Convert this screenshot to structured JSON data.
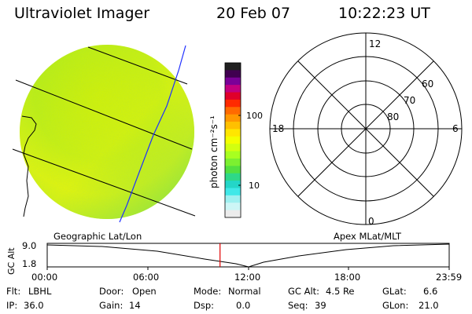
{
  "header": {
    "title": "Ultraviolet Imager",
    "date": "20 Feb 07",
    "time": "10:22:23 UT"
  },
  "colorbar": {
    "label": "photon cm⁻²s⁻¹",
    "tick_labels": [
      "100",
      "10"
    ],
    "colors": [
      "#202020",
      "#400050",
      "#7a0098",
      "#c20080",
      "#e0002a",
      "#ff2a00",
      "#ff6a00",
      "#ff9800",
      "#ffc000",
      "#ffe600",
      "#f3ff00",
      "#d2ff10",
      "#a8ff20",
      "#7cf030",
      "#52e040",
      "#2ed888",
      "#24d6c8",
      "#40e8e8",
      "#9ef0f0",
      "#cdf6f6",
      "#ececec"
    ]
  },
  "polar": {
    "mlt_labels": {
      "top": "12",
      "left": "18",
      "right": "6",
      "bottom": "0"
    },
    "mlat_labels": [
      "60",
      "70",
      "80"
    ]
  },
  "timeline": {
    "left_label": "Geographic Lat/Lon",
    "right_label": "Apex MLat/MLT",
    "y_axis_label": "GC Alt",
    "y_ticks": [
      "9.0",
      "1.8"
    ],
    "x_ticks": [
      "00:00",
      "06:00",
      "12:00",
      "18:00",
      "23:59"
    ],
    "current_time_fraction": 0.43
  },
  "info": {
    "row1": [
      {
        "label": "Flt:",
        "value": "LBHL"
      },
      {
        "label": "Door:",
        "value": "Open"
      },
      {
        "label": "Mode:",
        "value": "Normal"
      },
      {
        "label": "GC Alt:",
        "value": "4.5 Re"
      },
      {
        "label": "GLat:",
        "value": "6.6"
      }
    ],
    "row2": [
      {
        "label": "IP:",
        "value": "36.0"
      },
      {
        "label": "Gain:",
        "value": "14"
      },
      {
        "label": "Dsp:",
        "value": "0.0"
      },
      {
        "label": "Seq:",
        "value": "39"
      },
      {
        "label": "GLon:",
        "value": "21.0"
      }
    ]
  }
}
